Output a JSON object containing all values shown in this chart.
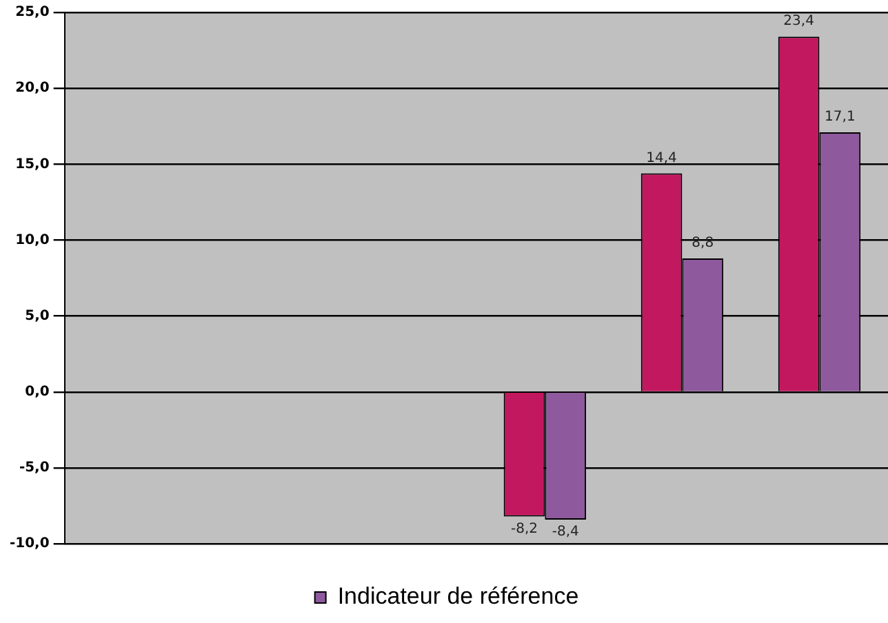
{
  "chart_data": {
    "type": "bar",
    "categories": [
      null,
      null,
      null,
      null,
      null,
      null
    ],
    "series": [
      {
        "color": "#c2185f",
        "values": [
          null,
          null,
          null,
          -8.2,
          14.4,
          23.4
        ],
        "value_labels": [
          null,
          null,
          null,
          "-8,2",
          "14,4",
          "23,4"
        ]
      },
      {
        "name": "Indicateur de référence",
        "color": "#8e5a9d",
        "values": [
          null,
          null,
          null,
          -8.4,
          8.8,
          17.1
        ],
        "value_labels": [
          null,
          null,
          null,
          "-8,4",
          "8,8",
          "17,1"
        ]
      }
    ],
    "ylim": [
      -10,
      25
    ],
    "yticks": [
      {
        "value": -10,
        "label": "-10,0"
      },
      {
        "value": -5,
        "label": "-5,0"
      },
      {
        "value": 0,
        "label": "0,0"
      },
      {
        "value": 5,
        "label": "5,0"
      },
      {
        "value": 10,
        "label": "10,0"
      },
      {
        "value": 15,
        "label": "15,0"
      },
      {
        "value": 20,
        "label": "20,0"
      },
      {
        "value": 25,
        "label": "25,0"
      }
    ],
    "grid": "y",
    "legend": "bottom"
  }
}
